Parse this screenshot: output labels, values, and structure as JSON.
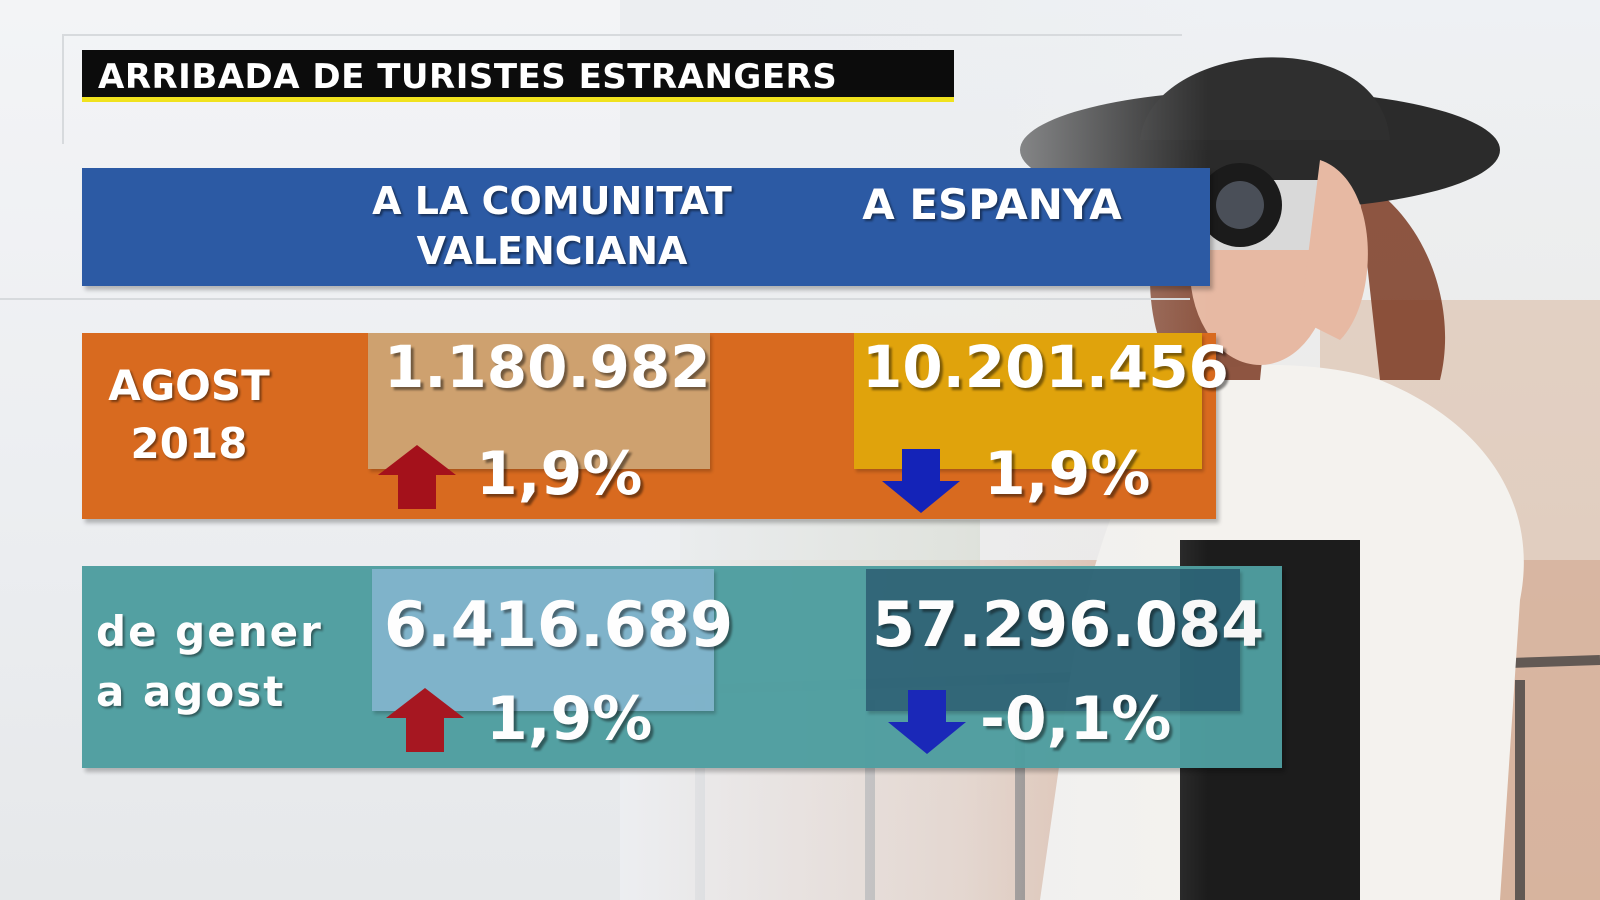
{
  "title": "ARRIBADA DE TURISTES ESTRANGERS",
  "columns": {
    "comunitat_line1": "A LA COMUNITAT",
    "comunitat_line2": "VALENCIANA",
    "espanya": "A ESPANYA"
  },
  "rows": [
    {
      "label_line1": "AGOST",
      "label_line2": "2018",
      "cv_value": "1.180.982",
      "cv_change": "1,9%",
      "cv_trend": "up",
      "es_value": "10.201.456",
      "es_change": "1,9%",
      "es_trend": "down"
    },
    {
      "label_line1": "de gener",
      "label_line2": "a agost",
      "cv_value": "6.416.689",
      "cv_change": "1,9%",
      "cv_trend": "up",
      "es_value": "57.296.084",
      "es_change": "-0,1%",
      "es_trend": "down"
    }
  ],
  "colors": {
    "title_bg": "#0c0c0c",
    "title_underline": "#f0e21e",
    "header_band": "#2c5aa4",
    "row_agost": "#d86a1f",
    "row_gener": "#4f9ea0",
    "arrow_up": "#a4111b",
    "arrow_down": "#1423b8"
  },
  "icons": {
    "up": "arrow-up-icon",
    "down": "arrow-down-icon"
  }
}
